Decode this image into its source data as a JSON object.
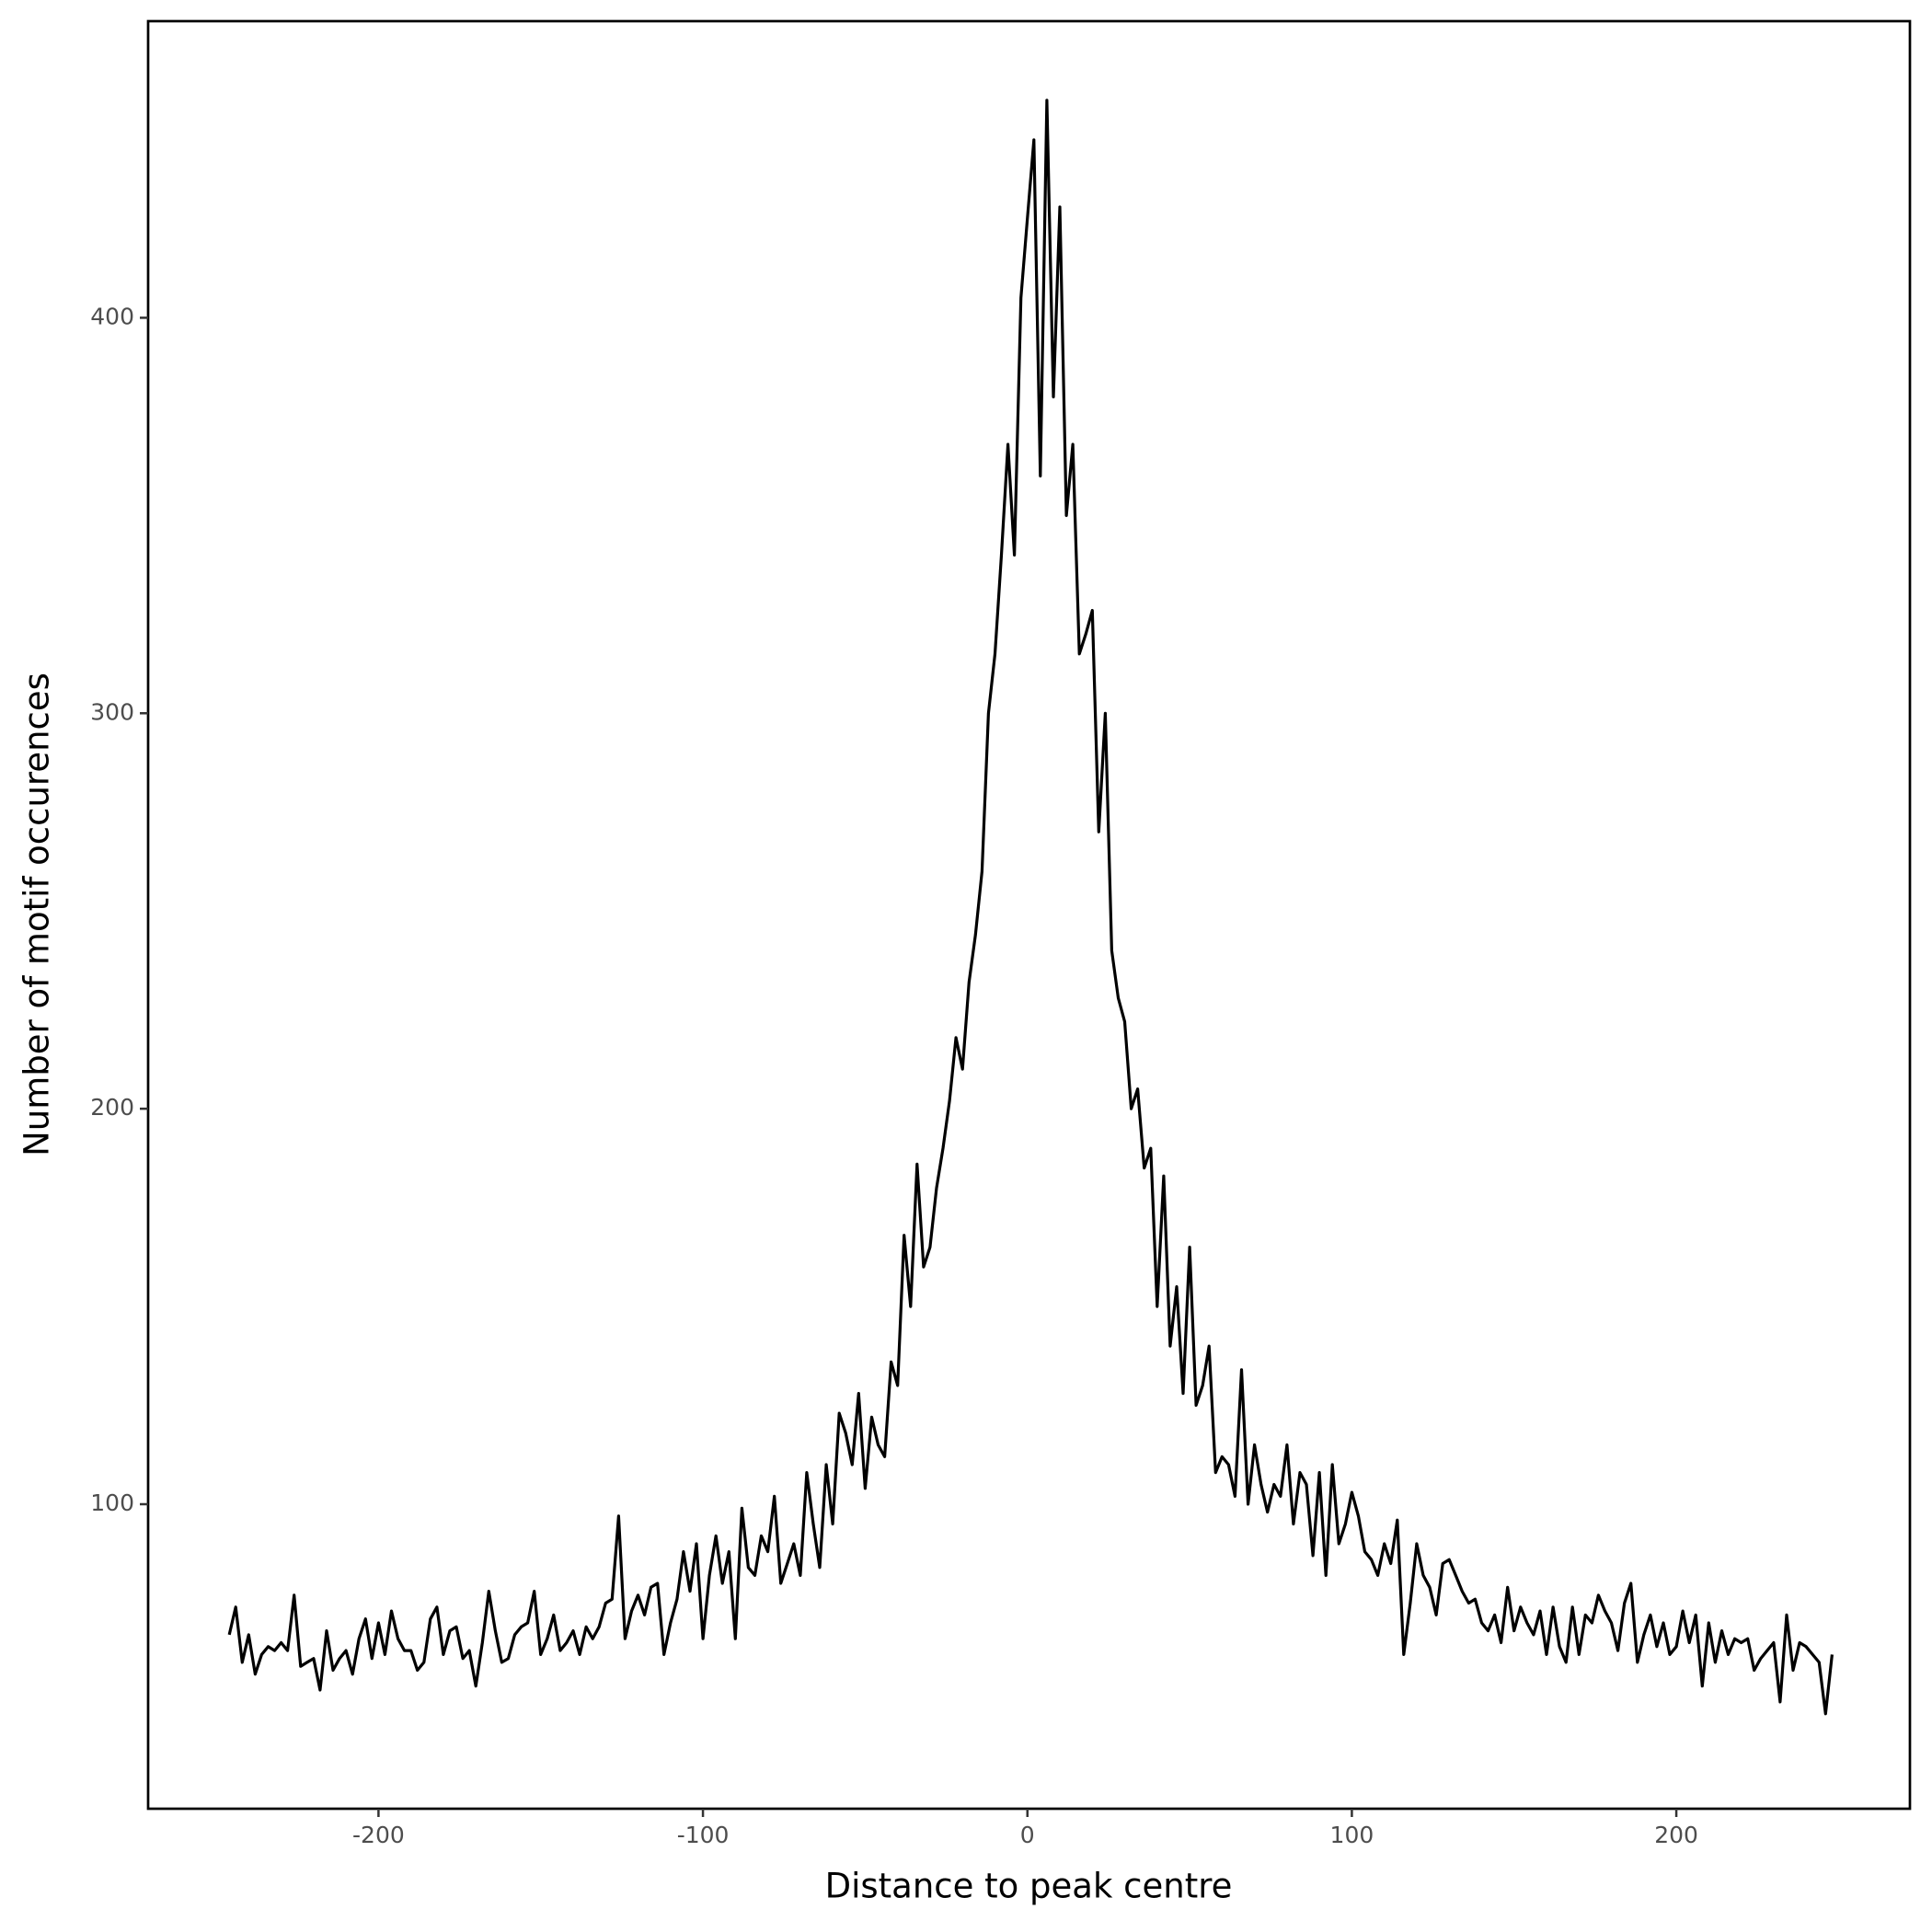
{
  "chart_data": {
    "type": "line",
    "xlabel": "Distance to peak centre",
    "ylabel": "Number of motif occurences",
    "xlim": [
      -271,
      272
    ],
    "ylim": [
      23,
      475
    ],
    "xticks": [
      -200,
      -100,
      0,
      100,
      200
    ],
    "yticks": [
      100,
      200,
      300,
      400
    ],
    "series": [
      {
        "color": "#000000",
        "x": [
          -246,
          -244,
          -242,
          -240,
          -238,
          -236,
          -234,
          -232,
          -230,
          -228,
          -226,
          -224,
          -222,
          -220,
          -218,
          -216,
          -214,
          -212,
          -210,
          -208,
          -206,
          -204,
          -202,
          -200,
          -198,
          -196,
          -194,
          -192,
          -190,
          -188,
          -186,
          -184,
          -182,
          -180,
          -178,
          -176,
          -174,
          -172,
          -170,
          -168,
          -166,
          -164,
          -162,
          -160,
          -158,
          -156,
          -154,
          -152,
          -150,
          -148,
          -146,
          -144,
          -142,
          -140,
          -138,
          -136,
          -134,
          -132,
          -130,
          -128,
          -126,
          -124,
          -122,
          -120,
          -118,
          -116,
          -114,
          -112,
          -110,
          -108,
          -106,
          -104,
          -102,
          -100,
          -98,
          -96,
          -94,
          -92,
          -90,
          -88,
          -86,
          -84,
          -82,
          -80,
          -78,
          -76,
          -74,
          -72,
          -70,
          -68,
          -66,
          -64,
          -62,
          -60,
          -58,
          -56,
          -54,
          -52,
          -50,
          -48,
          -46,
          -44,
          -42,
          -40,
          -38,
          -36,
          -34,
          -32,
          -30,
          -28,
          -26,
          -24,
          -22,
          -20,
          -18,
          -16,
          -14,
          -12,
          -10,
          -8,
          -6,
          -4,
          -2,
          0,
          2,
          4,
          6,
          8,
          10,
          12,
          14,
          16,
          18,
          20,
          22,
          24,
          26,
          28,
          30,
          32,
          34,
          36,
          38,
          40,
          42,
          44,
          46,
          48,
          50,
          52,
          54,
          56,
          58,
          60,
          62,
          64,
          66,
          68,
          70,
          72,
          74,
          76,
          78,
          80,
          82,
          84,
          86,
          88,
          90,
          92,
          94,
          96,
          98,
          100,
          102,
          104,
          106,
          108,
          110,
          112,
          114,
          116,
          118,
          120,
          122,
          124,
          126,
          128,
          130,
          132,
          134,
          136,
          138,
          140,
          142,
          144,
          146,
          148,
          150,
          152,
          154,
          156,
          158,
          160,
          162,
          164,
          166,
          168,
          170,
          172,
          174,
          176,
          178,
          180,
          182,
          184,
          186,
          188,
          190,
          192,
          194,
          196,
          198,
          200,
          202,
          204,
          206,
          208,
          210,
          212,
          214,
          216,
          218,
          220,
          222,
          224,
          226,
          228,
          230,
          232,
          234,
          236,
          238,
          240,
          242,
          244,
          246,
          248
        ],
        "values": [
          67,
          74,
          60,
          67,
          57,
          62,
          64,
          63,
          65,
          63,
          77,
          59,
          60,
          61,
          53,
          68,
          58,
          61,
          63,
          57,
          66,
          71,
          61,
          70,
          62,
          73,
          66,
          63,
          63,
          58,
          60,
          71,
          74,
          62,
          68,
          69,
          61,
          63,
          54,
          65,
          78,
          68,
          60,
          61,
          67,
          69,
          70,
          78,
          62,
          66,
          72,
          63,
          65,
          68,
          62,
          69,
          66,
          69,
          75,
          76,
          97,
          66,
          73,
          77,
          72,
          79,
          80,
          62,
          70,
          76,
          88,
          78,
          90,
          66,
          82,
          92,
          80,
          88,
          66,
          99,
          84,
          82,
          92,
          88,
          102,
          80,
          85,
          90,
          82,
          108,
          95,
          84,
          110,
          95,
          123,
          118,
          110,
          128,
          104,
          122,
          115,
          112,
          136,
          130,
          168,
          150,
          186,
          160,
          165,
          180,
          190,
          202,
          218,
          210,
          232,
          244,
          260,
          300,
          315,
          340,
          368,
          340,
          405,
          425,
          445,
          360,
          455,
          380,
          428,
          350,
          368,
          315,
          320,
          326,
          270,
          300,
          240,
          228,
          222,
          200,
          205,
          185,
          190,
          150,
          183,
          140,
          155,
          128,
          165,
          125,
          130,
          140,
          108,
          112,
          110,
          102,
          134,
          100,
          115,
          105,
          98,
          105,
          102,
          115,
          95,
          108,
          105,
          87,
          108,
          82,
          110,
          90,
          95,
          103,
          97,
          88,
          86,
          82,
          90,
          85,
          96,
          62,
          75,
          90,
          82,
          79,
          72,
          85,
          86,
          82,
          78,
          75,
          76,
          70,
          68,
          72,
          65,
          79,
          68,
          74,
          70,
          67,
          73,
          62,
          74,
          64,
          60,
          74,
          62,
          72,
          70,
          77,
          73,
          70,
          63,
          75,
          80,
          60,
          67,
          72,
          64,
          70,
          62,
          64,
          73,
          65,
          72,
          54,
          70,
          60,
          68,
          62,
          66,
          65,
          66,
          58,
          61,
          63,
          65,
          50,
          72,
          58,
          65,
          64,
          62,
          60,
          47,
          62
        ]
      }
    ]
  }
}
